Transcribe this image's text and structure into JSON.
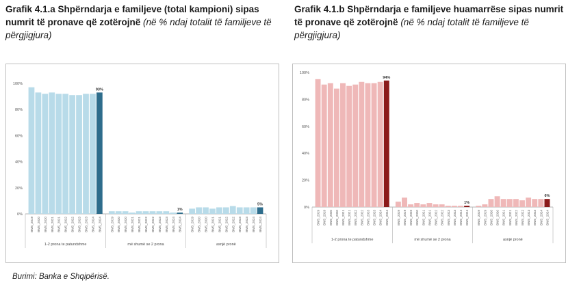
{
  "left": {
    "title_bold": "Grafik 4.1.a Shpërndarja e familjeve (total kampioni) sipas numrit të pronave që zotërojnë",
    "title_italic": "(në % ndaj totalit të familjeve të përgjigjura)"
  },
  "right": {
    "title_bold": "Grafik 4.1.b Shpërndarja e familjeve huamarrëse sipas numrit të pronave që zotërojnë",
    "title_italic": "(në % ndaj totalit të familjeve të përgjigjura)"
  },
  "source": "Burimi: Banka e Shqipërisë.",
  "chart_data": [
    {
      "type": "bar",
      "yticks": [
        "0%",
        "20%",
        "40%",
        "60%",
        "80%",
        "100%"
      ],
      "ylim": [
        0,
        100
      ],
      "x_labels": [
        "BMS_2019",
        "BMS_2020",
        "BMS_2020",
        "BMS_2021",
        "BMS_2021",
        "BMS_2022",
        "BMS_2022",
        "BMS_2023",
        "BMS_2023",
        "BMS_2024",
        "BMS_2024"
      ],
      "groups": [
        {
          "label": "1-2 prona te patundshme",
          "values": [
            97,
            93,
            92,
            93,
            92,
            92,
            91,
            91,
            92,
            92,
            93
          ],
          "data_label": "93%"
        },
        {
          "label": "më shumë se 2 prona",
          "values": [
            2,
            2,
            2,
            1,
            2,
            2,
            2,
            2,
            2,
            1,
            1
          ],
          "data_label": "1%"
        },
        {
          "label": "asnjë pronë",
          "values": [
            4,
            5,
            5,
            4,
            5,
            5,
            6,
            5,
            5,
            5,
            5
          ],
          "data_label": "5%"
        }
      ],
      "colors": {
        "bar": "#b8dbe9",
        "highlight": "#2e6d8c"
      },
      "grid": false
    },
    {
      "type": "bar",
      "yticks": [
        "0%",
        "20%",
        "40%",
        "60%",
        "80%",
        "100%"
      ],
      "ylim": [
        0,
        100
      ],
      "x_labels": [
        "BMS_2019",
        "BMS_2019",
        "BMS_2020",
        "BMS_2020",
        "BMS_2021",
        "BMS_2021",
        "BMS_2022",
        "BMS_2022",
        "BMS_2023",
        "BMS_2023",
        "BMS_2024",
        "BMS_2024"
      ],
      "groups": [
        {
          "label": "1-2 prona te patundshme",
          "values": [
            95,
            91,
            92,
            88,
            92,
            90,
            91,
            93,
            92,
            92,
            93,
            94
          ],
          "data_label": "94%"
        },
        {
          "label": "më shumë se 2 prona",
          "values": [
            4,
            7,
            2,
            3,
            2,
            3,
            2,
            2,
            1,
            1,
            1,
            1
          ],
          "data_label": "1%"
        },
        {
          "label": "asnjë pronë",
          "values": [
            1,
            2,
            6,
            8,
            6,
            6,
            6,
            5,
            7,
            6,
            6,
            6
          ],
          "data_label": "6%"
        }
      ],
      "colors": {
        "bar": "#efb8b8",
        "highlight": "#8b1a1a"
      },
      "grid": false
    }
  ]
}
